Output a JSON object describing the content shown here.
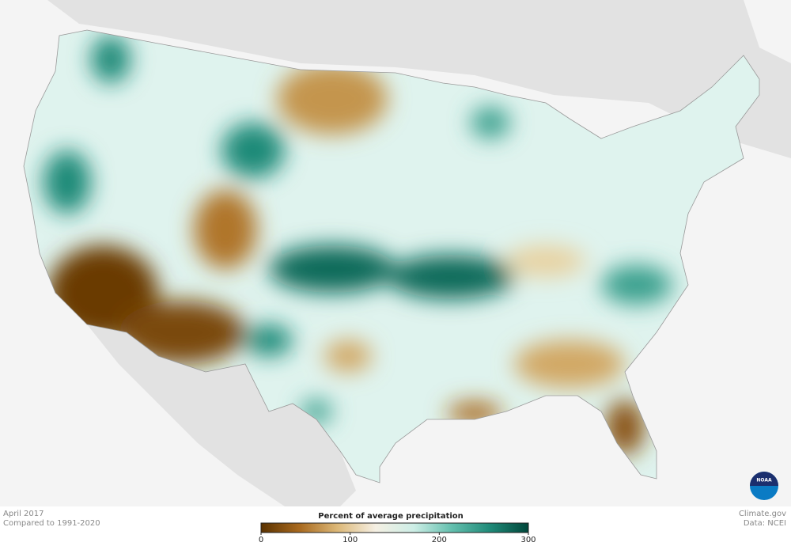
{
  "header": {
    "date": "April 2017",
    "baseline": "Compared to 1991-2020"
  },
  "legend": {
    "title": "Percent of average precipitation",
    "range": [
      0,
      300
    ],
    "ticks": [
      0,
      100,
      200,
      300
    ],
    "colors": [
      "#5a3200",
      "#a8691e",
      "#dcb878",
      "#f5f0e4",
      "#cdeee6",
      "#63bfae",
      "#1f8a78",
      "#00463a"
    ]
  },
  "credits": {
    "source": "Climate.gov",
    "data": "Data: NCEI"
  },
  "logo": "NOAA"
}
